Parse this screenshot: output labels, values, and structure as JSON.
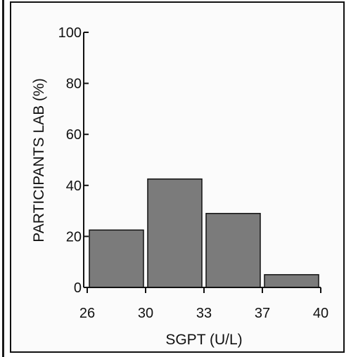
{
  "chart_data": {
    "type": "bar",
    "bin_edges": [
      26,
      30,
      33,
      37,
      40
    ],
    "bins": [
      "26-30",
      "30-33",
      "33-37",
      "37-40"
    ],
    "values": [
      22.5,
      42.5,
      29,
      5
    ],
    "xlabel": "SGPT (U/L)",
    "ylabel": "PARTICIPANTS LAB (%)",
    "ylim": [
      0,
      100
    ],
    "yticks": [
      0,
      20,
      40,
      60,
      80,
      100
    ],
    "xticks": [
      26,
      30,
      33,
      37,
      40
    ],
    "ytick_labels": [
      "0",
      "20",
      "40",
      "60",
      "80",
      "100"
    ],
    "xtick_labels": [
      "26",
      "30",
      "33",
      "37",
      "40"
    ],
    "grid": false,
    "legend": "none",
    "colors": {
      "bar_fill": "#7b7b7b",
      "bar_stroke": "#111111",
      "axis": "#111111"
    }
  }
}
